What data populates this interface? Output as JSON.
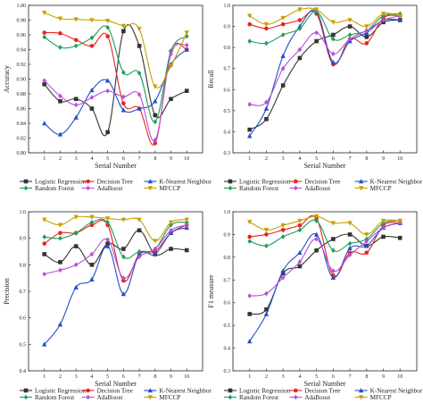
{
  "chart_data": [
    {
      "type": "line",
      "xlabel": "Serial Number",
      "ylabel": "Accuracy",
      "x": [
        1,
        2,
        3,
        4,
        5,
        6,
        7,
        8,
        9,
        10
      ],
      "xlim": [
        0,
        11
      ],
      "ylim": [
        0.8,
        1.0
      ],
      "yticks": [
        "0.80",
        "0.82",
        "0.84",
        "0.86",
        "0.88",
        "0.90",
        "0.92",
        "0.94",
        "0.96",
        "0.98",
        "1.00"
      ],
      "grid": false,
      "legend_position": "bottom",
      "series": [
        {
          "name": "Logistic Regression",
          "values": [
            0.893,
            0.87,
            0.873,
            0.86,
            0.828,
            0.965,
            0.945,
            0.851,
            0.873,
            0.884
          ]
        },
        {
          "name": "Decision Tree",
          "values": [
            0.963,
            0.962,
            0.953,
            0.945,
            0.958,
            0.867,
            0.86,
            0.813,
            0.938,
            0.94
          ]
        },
        {
          "name": "K-Nearest Neighbor",
          "values": [
            0.84,
            0.825,
            0.848,
            0.885,
            0.898,
            0.858,
            0.86,
            0.87,
            0.92,
            0.94
          ]
        },
        {
          "name": "Random Forest",
          "values": [
            0.957,
            0.943,
            0.945,
            0.956,
            0.97,
            0.909,
            0.908,
            0.842,
            0.938,
            0.958
          ]
        },
        {
          "name": "AdaBoost",
          "values": [
            0.898,
            0.877,
            0.865,
            0.875,
            0.884,
            0.876,
            0.879,
            0.817,
            0.934,
            0.946
          ]
        },
        {
          "name": "MFCCP",
          "values": [
            0.99,
            0.982,
            0.981,
            0.98,
            0.979,
            0.972,
            0.968,
            0.89,
            0.918,
            0.963
          ]
        }
      ]
    },
    {
      "type": "line",
      "xlabel": "Serial Number",
      "ylabel": "Recall",
      "x": [
        1,
        2,
        3,
        4,
        5,
        6,
        7,
        8,
        9,
        10
      ],
      "xlim": [
        0,
        11
      ],
      "ylim": [
        0.3,
        1.0
      ],
      "yticks": [
        "0.3",
        "0.4",
        "0.5",
        "0.6",
        "0.7",
        "0.8",
        "0.9",
        "1.0"
      ],
      "grid": false,
      "legend_position": "bottom",
      "series": [
        {
          "name": "Logistic Regression",
          "values": [
            0.41,
            0.46,
            0.62,
            0.75,
            0.83,
            0.86,
            0.9,
            0.85,
            0.92,
            0.93
          ]
        },
        {
          "name": "Decision Tree",
          "values": [
            0.91,
            0.89,
            0.91,
            0.93,
            0.96,
            0.72,
            0.84,
            0.82,
            0.94,
            0.95
          ]
        },
        {
          "name": "K-Nearest Neighbor",
          "values": [
            0.38,
            0.51,
            0.76,
            0.9,
            0.97,
            0.73,
            0.83,
            0.87,
            0.93,
            0.93
          ]
        },
        {
          "name": "Random Forest",
          "values": [
            0.83,
            0.82,
            0.86,
            0.89,
            0.97,
            0.84,
            0.86,
            0.88,
            0.95,
            0.96
          ]
        },
        {
          "name": "AdaBoost",
          "values": [
            0.53,
            0.54,
            0.7,
            0.79,
            0.87,
            0.77,
            0.84,
            0.88,
            0.93,
            0.95
          ]
        },
        {
          "name": "MFCCP",
          "values": [
            0.95,
            0.91,
            0.94,
            0.98,
            0.98,
            0.92,
            0.93,
            0.9,
            0.96,
            0.95
          ]
        }
      ]
    },
    {
      "type": "line",
      "xlabel": "Serial Number",
      "ylabel": "Precision",
      "x": [
        1,
        2,
        3,
        4,
        5,
        6,
        7,
        8,
        9,
        10
      ],
      "xlim": [
        0,
        11
      ],
      "ylim": [
        0.4,
        1.0
      ],
      "yticks": [
        "0.4",
        "0.5",
        "0.6",
        "0.7",
        "0.8",
        "0.9",
        "1.0"
      ],
      "grid": false,
      "legend_position": "bottom",
      "series": [
        {
          "name": "Logistic Regression",
          "values": [
            0.84,
            0.81,
            0.87,
            0.8,
            0.88,
            0.86,
            0.93,
            0.84,
            0.86,
            0.855
          ]
        },
        {
          "name": "Decision Tree",
          "values": [
            0.88,
            0.92,
            0.92,
            0.95,
            0.95,
            0.74,
            0.84,
            0.85,
            0.92,
            0.95
          ]
        },
        {
          "name": "K-Nearest Neighbor",
          "values": [
            0.5,
            0.575,
            0.715,
            0.745,
            0.87,
            0.69,
            0.84,
            0.84,
            0.92,
            0.94
          ]
        },
        {
          "name": "Random Forest",
          "values": [
            0.905,
            0.9,
            0.92,
            0.96,
            0.96,
            0.83,
            0.85,
            0.86,
            0.95,
            0.96
          ]
        },
        {
          "name": "AdaBoost",
          "values": [
            0.765,
            0.78,
            0.8,
            0.84,
            0.895,
            0.75,
            0.83,
            0.86,
            0.93,
            0.95
          ]
        },
        {
          "name": "MFCCP",
          "values": [
            0.97,
            0.95,
            0.98,
            0.98,
            0.975,
            0.97,
            0.97,
            0.89,
            0.96,
            0.97
          ]
        }
      ]
    },
    {
      "type": "line",
      "xlabel": "Serial Number",
      "ylabel": "F1 measure",
      "x": [
        1,
        2,
        3,
        4,
        5,
        6,
        7,
        8,
        9,
        10
      ],
      "xlim": [
        0,
        11
      ],
      "ylim": [
        0.3,
        1.0
      ],
      "yticks": [
        "0.3",
        "0.4",
        "0.5",
        "0.6",
        "0.7",
        "0.8",
        "0.9",
        "1.0"
      ],
      "grid": false,
      "legend_position": "bottom",
      "series": [
        {
          "name": "Logistic Regression",
          "values": [
            0.55,
            0.57,
            0.73,
            0.76,
            0.83,
            0.88,
            0.9,
            0.85,
            0.89,
            0.885
          ]
        },
        {
          "name": "Decision Tree",
          "values": [
            0.89,
            0.9,
            0.92,
            0.94,
            0.97,
            0.72,
            0.82,
            0.82,
            0.94,
            0.95
          ]
        },
        {
          "name": "K-Nearest Neighbor",
          "values": [
            0.43,
            0.55,
            0.74,
            0.82,
            0.9,
            0.71,
            0.84,
            0.85,
            0.93,
            0.95
          ]
        },
        {
          "name": "Random Forest",
          "values": [
            0.87,
            0.85,
            0.89,
            0.92,
            0.96,
            0.83,
            0.86,
            0.88,
            0.95,
            0.96
          ]
        },
        {
          "name": "AdaBoost",
          "values": [
            0.63,
            0.64,
            0.71,
            0.78,
            0.88,
            0.74,
            0.81,
            0.87,
            0.93,
            0.95
          ]
        },
        {
          "name": "MFCCP",
          "values": [
            0.955,
            0.92,
            0.94,
            0.96,
            0.98,
            0.95,
            0.95,
            0.9,
            0.96,
            0.96
          ]
        }
      ]
    }
  ],
  "series_colors": {
    "Logistic Regression": "#333333",
    "Decision Tree": "#e8251f",
    "K-Nearest Neighbor": "#1f4fcc",
    "Random Forest": "#1e9e58",
    "AdaBoost": "#b84fd8",
    "MFCCP": "#c8a000"
  },
  "series_markers": {
    "Logistic Regression": "square",
    "Decision Tree": "circle",
    "K-Nearest Neighbor": "triangle-up",
    "Random Forest": "diamond",
    "AdaBoost": "diamond",
    "MFCCP": "triangle-down"
  }
}
